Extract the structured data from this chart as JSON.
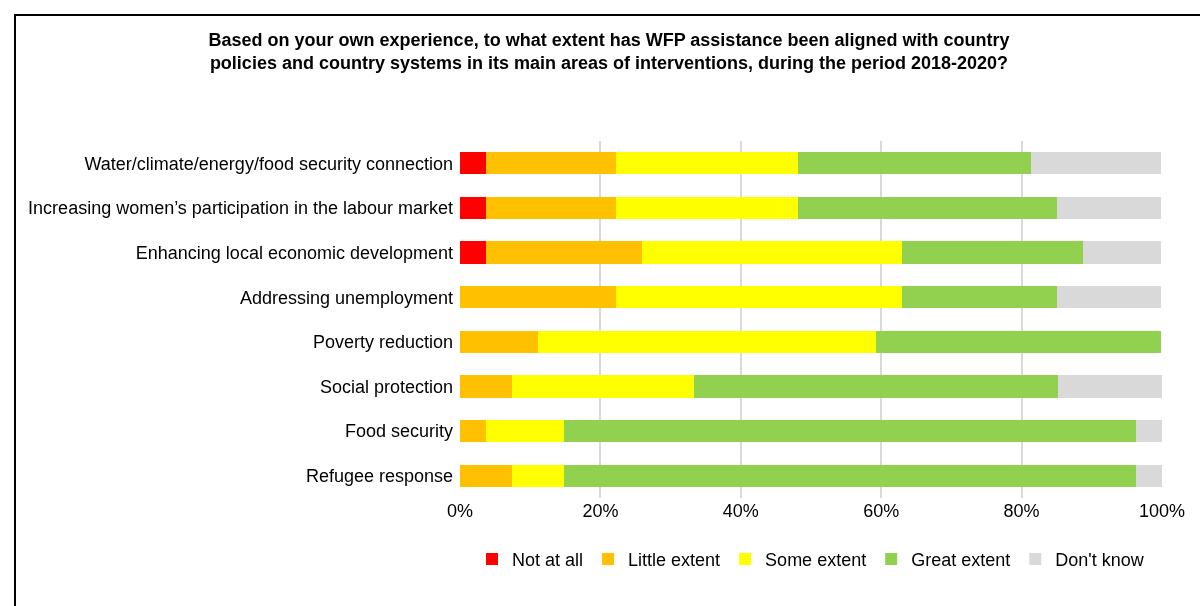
{
  "chart_data": {
    "type": "bar",
    "orientation": "horizontal",
    "stacked": true,
    "title": "Based on your own experience, to what extent has WFP assistance been aligned with country\npolicies and country systems in its main areas of interventions, during the period 2018-2020?",
    "categories": [
      "Water/climate/energy/food security connection",
      "Increasing women’s participation in the labour market",
      "Enhancing local economic development",
      "Addressing unemployment",
      "Poverty reduction",
      "Social protection",
      "Food security",
      "Refugee response"
    ],
    "series": [
      {
        "name": "Not at all",
        "color": "#ff0000",
        "values": [
          3.7,
          3.7,
          3.7,
          0,
          0,
          0,
          0,
          0
        ]
      },
      {
        "name": "Little extent",
        "color": "#ffc000",
        "values": [
          18.5,
          18.5,
          22.2,
          22.2,
          11.1,
          7.4,
          3.7,
          7.4
        ]
      },
      {
        "name": "Some extent",
        "color": "#ffff00",
        "values": [
          25.9,
          25.9,
          37.0,
          40.7,
          48.1,
          25.9,
          11.1,
          7.4
        ]
      },
      {
        "name": "Great extent",
        "color": "#92d050",
        "values": [
          33.3,
          37.0,
          25.9,
          22.2,
          40.7,
          51.9,
          81.5,
          81.5
        ]
      },
      {
        "name": "Don't know",
        "color": "#d9d9d9",
        "values": [
          18.5,
          14.8,
          11.1,
          14.8,
          0,
          14.8,
          3.7,
          3.7
        ]
      }
    ],
    "xlim": [
      0,
      100
    ],
    "xticks": [
      {
        "value": 0,
        "label": "0%"
      },
      {
        "value": 20,
        "label": "20%"
      },
      {
        "value": 40,
        "label": "40%"
      },
      {
        "value": 60,
        "label": "60%"
      },
      {
        "value": 80,
        "label": "80%"
      },
      {
        "value": 100,
        "label": "100%"
      }
    ],
    "grid": "x",
    "legend": "bottom"
  }
}
